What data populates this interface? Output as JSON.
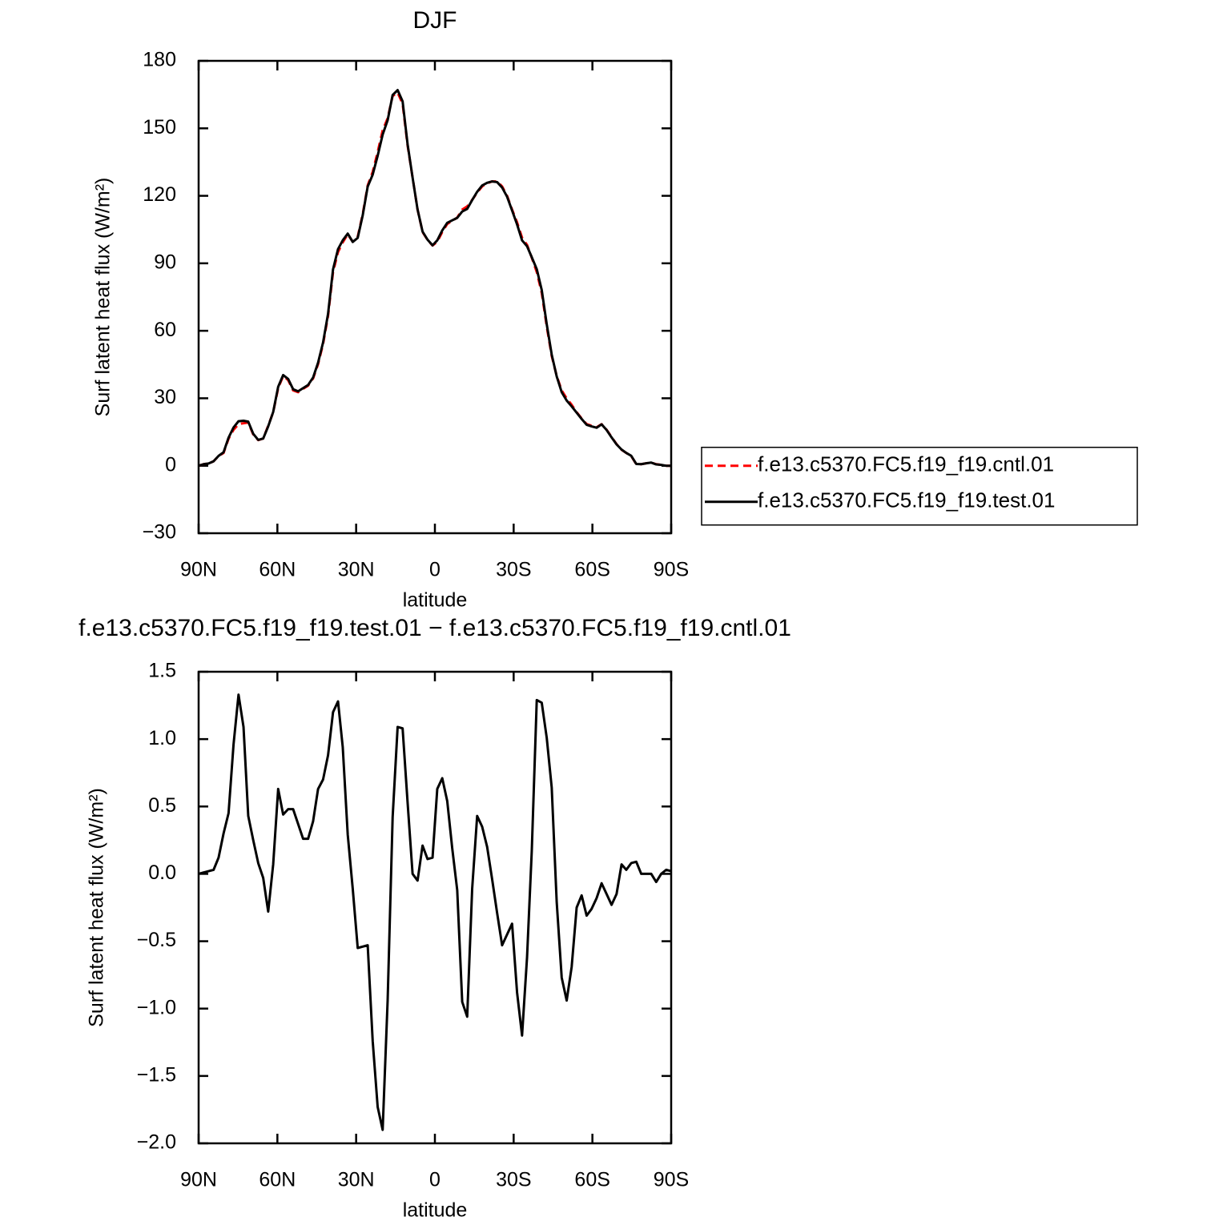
{
  "chart_data": [
    {
      "type": "line",
      "title": "DJF",
      "x_label": "latitude",
      "y_label": "Surf latent heat flux (W/m²)",
      "x": [
        90,
        88.1,
        86.2,
        84.3,
        82.4,
        80.5,
        78.6,
        76.7,
        74.8,
        72.9,
        71.1,
        69.2,
        67.3,
        65.4,
        63.5,
        61.6,
        59.7,
        57.8,
        55.9,
        54.0,
        52.1,
        50.2,
        48.3,
        46.4,
        44.5,
        42.6,
        40.7,
        38.8,
        36.9,
        35.1,
        33.2,
        31.3,
        29.4,
        27.5,
        25.6,
        23.7,
        21.8,
        19.9,
        18.0,
        16.1,
        14.2,
        12.3,
        10.4,
        8.5,
        6.6,
        4.7,
        2.8,
        0.9,
        -0.9,
        -2.8,
        -4.7,
        -6.6,
        -8.5,
        -10.4,
        -12.3,
        -14.2,
        -16.1,
        -18.0,
        -19.9,
        -21.8,
        -23.7,
        -25.6,
        -27.5,
        -29.4,
        -31.3,
        -33.2,
        -35.1,
        -36.9,
        -38.8,
        -40.7,
        -42.6,
        -44.5,
        -46.4,
        -48.3,
        -50.2,
        -52.1,
        -54.0,
        -55.9,
        -57.8,
        -59.7,
        -61.6,
        -63.5,
        -65.4,
        -67.3,
        -69.2,
        -71.1,
        -72.9,
        -74.8,
        -76.7,
        -78.6,
        -80.5,
        -82.4,
        -84.3,
        -86.2,
        -88.1,
        -90
      ],
      "series": [
        {
          "name": "f.e13.c5370.FC5.f19_f19.cntl.01",
          "color": "#ff0000",
          "line_style": "dashed",
          "values": [
            0,
            0.7,
            1.0,
            2.0,
            4.3,
            5.7,
            12.0,
            16.0,
            18.5,
            18.9,
            19.2,
            13.9,
            11.4,
            12.1,
            17.8,
            23.8,
            34.5,
            39.9,
            38.1,
            33.5,
            32.7,
            34.2,
            35.6,
            38.8,
            45.2,
            54.1,
            66.6,
            86.1,
            95.0,
            99.3,
            102.9,
            99.6,
            101.8,
            111.8,
            124.6,
            130.6,
            139.5,
            149.1,
            154.5,
            164.4,
            165.9,
            160.9,
            142.4,
            128.1,
            113.9,
            103.9,
            100.4,
            97.9,
            99.6,
            103.9,
            107.5,
            108.9,
            110.3,
            113.9,
            115.3,
            118.2,
            121.4,
            124.2,
            125.6,
            126.4,
            126.4,
            124.2,
            120.0,
            113.9,
            108.2,
            101.4,
            98.2,
            92.5,
            86.1,
            76.8,
            61.9,
            48.8,
            39.9,
            33.5,
            29.9,
            27.1,
            23.8,
            21.0,
            18.5,
            17.8,
            17.1,
            18.5,
            16.0,
            12.8,
            9.6,
            7.1,
            5.7,
            4.3,
            0.7,
            0.7,
            1.1,
            1.4,
            0.7,
            0.4,
            0,
            0
          ]
        },
        {
          "name": "f.e13.c5370.FC5.f19_f19.test.01",
          "color": "#000000",
          "line_style": "solid",
          "values": [
            0,
            0.7,
            1.0,
            2.0,
            4.4,
            6.0,
            12.5,
            17.0,
            19.8,
            20.0,
            19.6,
            14.2,
            11.5,
            12.1,
            17.5,
            23.9,
            35.1,
            40.3,
            38.6,
            34.0,
            33.1,
            34.5,
            35.9,
            39.2,
            45.8,
            54.8,
            67.5,
            87.3,
            96.3,
            100.2,
            103.2,
            99.5,
            101.3,
            111.3,
            124.1,
            129.4,
            137.8,
            147.2,
            153.6,
            164.8,
            167.0,
            162.0,
            142.9,
            128.1,
            113.9,
            104.1,
            100.5,
            98.0,
            100.2,
            104.6,
            108.0,
            109.1,
            110.2,
            113.0,
            114.2,
            118.1,
            121.8,
            124.6,
            125.8,
            126.4,
            126.1,
            123.7,
            119.6,
            113.5,
            107.3,
            100.2,
            97.6,
            92.7,
            87.4,
            78.1,
            62.9,
            49.4,
            39.7,
            32.7,
            29.0,
            26.4,
            23.6,
            20.8,
            18.2,
            17.5,
            16.9,
            18.4,
            15.9,
            12.6,
            9.5,
            7.2,
            5.7,
            4.4,
            0.8,
            0.7,
            1.1,
            1.4,
            0.6,
            0.4,
            0,
            0
          ]
        }
      ],
      "xlim": [
        90,
        -90
      ],
      "xticks": [
        {
          "value": 90,
          "label": "90N"
        },
        {
          "value": 60,
          "label": "60N"
        },
        {
          "value": 30,
          "label": "30N"
        },
        0,
        {
          "value": -30,
          "label": "30S"
        },
        {
          "value": -60,
          "label": "60S"
        },
        {
          "value": -90,
          "label": "90S"
        }
      ],
      "ylim": [
        -30,
        180
      ],
      "yticks": [
        {
          "value": -30,
          "label": "−30"
        },
        0,
        30,
        60,
        90,
        120,
        150,
        180
      ],
      "legend": "right"
    },
    {
      "type": "line",
      "title": "f.e13.c5370.FC5.f19_f19.test.01 − f.e13.c5370.FC5.f19_f19.cntl.01",
      "x_label": "latitude",
      "y_label": "Surf latent heat flux (W/m²)",
      "x": [
        90,
        88.1,
        86.2,
        84.3,
        82.4,
        80.5,
        78.6,
        76.7,
        74.8,
        72.9,
        71.1,
        69.2,
        67.3,
        65.4,
        63.5,
        61.6,
        59.7,
        57.8,
        55.9,
        54.0,
        52.1,
        50.2,
        48.3,
        46.4,
        44.5,
        42.6,
        40.7,
        38.8,
        36.9,
        35.1,
        33.2,
        31.3,
        29.4,
        27.5,
        25.6,
        23.7,
        21.8,
        19.9,
        18.0,
        16.1,
        14.2,
        12.3,
        10.4,
        8.5,
        6.6,
        4.7,
        2.8,
        0.9,
        -0.9,
        -2.8,
        -4.7,
        -6.6,
        -8.5,
        -10.4,
        -12.3,
        -14.2,
        -16.1,
        -18.0,
        -19.9,
        -21.8,
        -23.7,
        -25.6,
        -27.5,
        -29.4,
        -31.3,
        -33.2,
        -35.1,
        -36.9,
        -38.8,
        -40.7,
        -42.6,
        -44.5,
        -46.4,
        -48.3,
        -50.2,
        -52.1,
        -54.0,
        -55.9,
        -57.8,
        -59.7,
        -61.6,
        -63.5,
        -65.4,
        -67.3,
        -69.2,
        -71.1,
        -72.9,
        -74.8,
        -76.7,
        -78.6,
        -80.5,
        -82.4,
        -84.3,
        -86.2,
        -88.1,
        -90
      ],
      "color": "#000000",
      "values": [
        0.0,
        0.01,
        0.02,
        0.03,
        0.12,
        0.3,
        0.45,
        0.96,
        1.33,
        1.09,
        0.43,
        0.25,
        0.08,
        -0.03,
        -0.28,
        0.07,
        0.63,
        0.44,
        0.48,
        0.48,
        0.37,
        0.26,
        0.26,
        0.39,
        0.63,
        0.7,
        0.88,
        1.2,
        1.28,
        0.94,
        0.29,
        -0.11,
        -0.55,
        -0.54,
        -0.53,
        -1.24,
        -1.73,
        -1.9,
        -0.94,
        0.42,
        1.09,
        1.08,
        0.53,
        0.0,
        -0.05,
        0.21,
        0.11,
        0.12,
        0.63,
        0.71,
        0.54,
        0.19,
        -0.12,
        -0.95,
        -1.06,
        -0.11,
        0.43,
        0.35,
        0.2,
        -0.04,
        -0.29,
        -0.53,
        -0.45,
        -0.37,
        -0.88,
        -1.2,
        -0.62,
        0.17,
        1.29,
        1.27,
        1.01,
        0.64,
        -0.21,
        -0.77,
        -0.94,
        -0.69,
        -0.25,
        -0.16,
        -0.31,
        -0.26,
        -0.18,
        -0.07,
        -0.15,
        -0.23,
        -0.15,
        0.07,
        0.03,
        0.08,
        0.09,
        0.0,
        0.0,
        0.0,
        -0.06,
        0.0,
        0.03,
        0.02
      ],
      "xlim": [
        90,
        -90
      ],
      "xticks": [
        {
          "value": 90,
          "label": "90N"
        },
        {
          "value": 60,
          "label": "60N"
        },
        {
          "value": 30,
          "label": "30N"
        },
        0,
        {
          "value": -30,
          "label": "30S"
        },
        {
          "value": -60,
          "label": "60S"
        },
        {
          "value": -90,
          "label": "90S"
        }
      ],
      "ylim": [
        -2,
        1.5
      ],
      "yticks": [
        {
          "value": -2,
          "label": "−2.0"
        },
        {
          "value": -1.5,
          "label": "−1.5"
        },
        {
          "value": -1,
          "label": "−1.0"
        },
        {
          "value": -0.5,
          "label": "−0.5"
        },
        {
          "value": 0,
          "label": "0.0"
        },
        0.5,
        {
          "value": 1,
          "label": "1.0"
        },
        1.5
      ]
    }
  ]
}
